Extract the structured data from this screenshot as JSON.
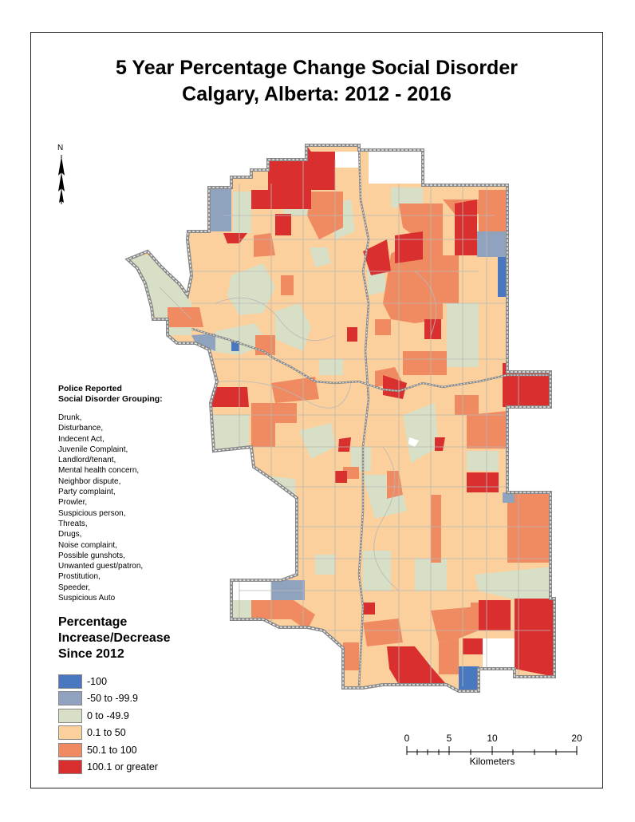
{
  "title": {
    "line1": "5 Year Percentage Change Social Disorder",
    "line2": "Calgary, Alberta: 2012 - 2016"
  },
  "north_arrow": {
    "label": "N",
    "icon": "north-arrow-icon"
  },
  "grouping": {
    "title_line1": "Police Reported",
    "title_line2": "Social Disorder Grouping:",
    "items": [
      "Drunk,",
      "Disturbance,",
      "Indecent Act,",
      "Juvenile Complaint,",
      "Landlord/tenant,",
      "Mental health concern,",
      "Neighbor dispute,",
      "Party complaint,",
      "Prowler,",
      "Suspicious person,",
      "Threats,",
      "Drugs,",
      "Noise complaint,",
      "Possible gunshots,",
      "Unwanted guest/patron,",
      "Prostitution,",
      "Speeder,",
      "Suspicious Auto"
    ]
  },
  "legend": {
    "title_line1": "Percentage",
    "title_line2": "Increase/Decrease",
    "title_line3": "Since 2012",
    "classes": [
      {
        "label": "-100",
        "color": "#4a78c0"
      },
      {
        "label": "-50 to -99.9",
        "color": "#8fa3be"
      },
      {
        "label": "0 to -49.9",
        "color": "#d7e0c6"
      },
      {
        "label": "0.1 to 50",
        "color": "#fbd09c"
      },
      {
        "label": "50.1 to 100",
        "color": "#f08a60"
      },
      {
        "label": "100.1 or greater",
        "color": "#d9302f"
      }
    ]
  },
  "scalebar": {
    "ticks": [
      "0",
      "5",
      "10",
      "20"
    ],
    "unit": "Kilometers"
  },
  "colors": {
    "frame": "#222222",
    "boundary": "#888888",
    "district_line": "#b8b8b8"
  }
}
